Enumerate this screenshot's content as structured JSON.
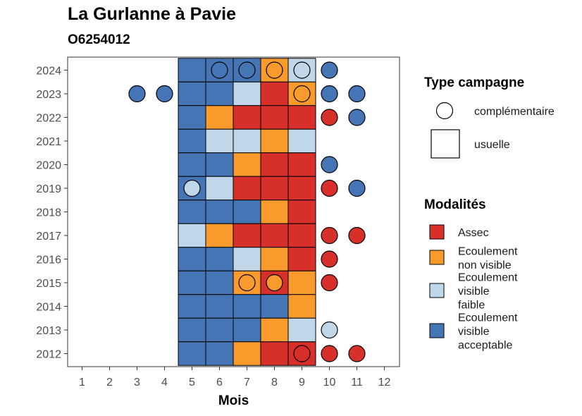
{
  "title": "La Gurlanne à Pavie",
  "subtitle": "O6254012",
  "chart_data": {
    "type": "heatmap",
    "xlabel": "Mois",
    "ylabel": "",
    "x_ticks": [
      1,
      2,
      3,
      4,
      5,
      6,
      7,
      8,
      9,
      10,
      11,
      12
    ],
    "y_ticks": [
      2012,
      2013,
      2014,
      2015,
      2016,
      2017,
      2018,
      2019,
      2020,
      2021,
      2022,
      2023,
      2024
    ],
    "legend_type": {
      "title": "Type campagne",
      "entries": [
        {
          "key": "complementaire",
          "label": "complémentaire",
          "shape": "circle"
        },
        {
          "key": "usuelle",
          "label": "usuelle",
          "shape": "square"
        }
      ]
    },
    "legend_modalites": {
      "title": "Modalités",
      "entries": [
        {
          "key": "assec",
          "lines": [
            "Assec"
          ],
          "color": "#d7302b"
        },
        {
          "key": "nonvisible",
          "lines": [
            "Ecoulement",
            "non visible"
          ],
          "color": "#f99b2c"
        },
        {
          "key": "faible",
          "lines": [
            "Ecoulement",
            "visible",
            "faible"
          ],
          "color": "#bfd7e8"
        },
        {
          "key": "acceptable",
          "lines": [
            "Ecoulement",
            "visible",
            "acceptable"
          ],
          "color": "#4575b4"
        }
      ]
    },
    "usuelle": [
      {
        "year": 2024,
        "months": [
          "acceptable",
          "acceptable",
          "acceptable",
          "nonvisible",
          "faible"
        ]
      },
      {
        "year": 2023,
        "months": [
          "acceptable",
          "acceptable",
          "faible",
          "assec",
          "nonvisible"
        ]
      },
      {
        "year": 2022,
        "months": [
          "acceptable",
          "nonvisible",
          "assec",
          "assec",
          "assec"
        ]
      },
      {
        "year": 2021,
        "months": [
          "acceptable",
          "faible",
          "faible",
          "nonvisible",
          "faible"
        ]
      },
      {
        "year": 2020,
        "months": [
          "acceptable",
          "acceptable",
          "nonvisible",
          "assec",
          "assec"
        ]
      },
      {
        "year": 2019,
        "months": [
          "acceptable",
          "faible",
          "assec",
          "assec",
          "assec"
        ]
      },
      {
        "year": 2018,
        "months": [
          "acceptable",
          "acceptable",
          "acceptable",
          "nonvisible",
          "assec"
        ]
      },
      {
        "year": 2017,
        "months": [
          "faible",
          "nonvisible",
          "assec",
          "assec",
          "assec"
        ]
      },
      {
        "year": 2016,
        "months": [
          "acceptable",
          "acceptable",
          "faible",
          "nonvisible",
          "assec"
        ]
      },
      {
        "year": 2015,
        "months": [
          "acceptable",
          "acceptable",
          "nonvisible",
          "assec",
          "nonvisible"
        ]
      },
      {
        "year": 2014,
        "months": [
          "acceptable",
          "acceptable",
          "acceptable",
          "acceptable",
          "nonvisible"
        ]
      },
      {
        "year": 2013,
        "months": [
          "acceptable",
          "acceptable",
          "acceptable",
          "nonvisible",
          "faible"
        ]
      },
      {
        "year": 2012,
        "months": [
          "acceptable",
          "acceptable",
          "nonvisible",
          "assec",
          "assec"
        ]
      }
    ],
    "usuelle_months": [
      5,
      6,
      7,
      8,
      9
    ],
    "complementaire": [
      {
        "year": 2024,
        "month": 6,
        "value": "acceptable"
      },
      {
        "year": 2024,
        "month": 7,
        "value": "acceptable"
      },
      {
        "year": 2024,
        "month": 8,
        "value": "nonvisible"
      },
      {
        "year": 2024,
        "month": 9,
        "value": "faible"
      },
      {
        "year": 2024,
        "month": 10,
        "value": "acceptable"
      },
      {
        "year": 2023,
        "month": 3,
        "value": "acceptable"
      },
      {
        "year": 2023,
        "month": 4,
        "value": "acceptable"
      },
      {
        "year": 2023,
        "month": 9,
        "value": "nonvisible"
      },
      {
        "year": 2023,
        "month": 10,
        "value": "acceptable"
      },
      {
        "year": 2023,
        "month": 11,
        "value": "acceptable"
      },
      {
        "year": 2022,
        "month": 10,
        "value": "assec"
      },
      {
        "year": 2022,
        "month": 11,
        "value": "acceptable"
      },
      {
        "year": 2020,
        "month": 10,
        "value": "acceptable"
      },
      {
        "year": 2019,
        "month": 5,
        "value": "faible"
      },
      {
        "year": 2019,
        "month": 10,
        "value": "assec"
      },
      {
        "year": 2019,
        "month": 11,
        "value": "acceptable"
      },
      {
        "year": 2017,
        "month": 10,
        "value": "assec"
      },
      {
        "year": 2017,
        "month": 11,
        "value": "assec"
      },
      {
        "year": 2016,
        "month": 10,
        "value": "assec"
      },
      {
        "year": 2015,
        "month": 7,
        "value": "nonvisible"
      },
      {
        "year": 2015,
        "month": 8,
        "value": "nonvisible"
      },
      {
        "year": 2015,
        "month": 10,
        "value": "assec"
      },
      {
        "year": 2013,
        "month": 10,
        "value": "faible"
      },
      {
        "year": 2012,
        "month": 9,
        "value": "assec"
      },
      {
        "year": 2012,
        "month": 10,
        "value": "assec"
      },
      {
        "year": 2012,
        "month": 11,
        "value": "assec"
      }
    ]
  }
}
